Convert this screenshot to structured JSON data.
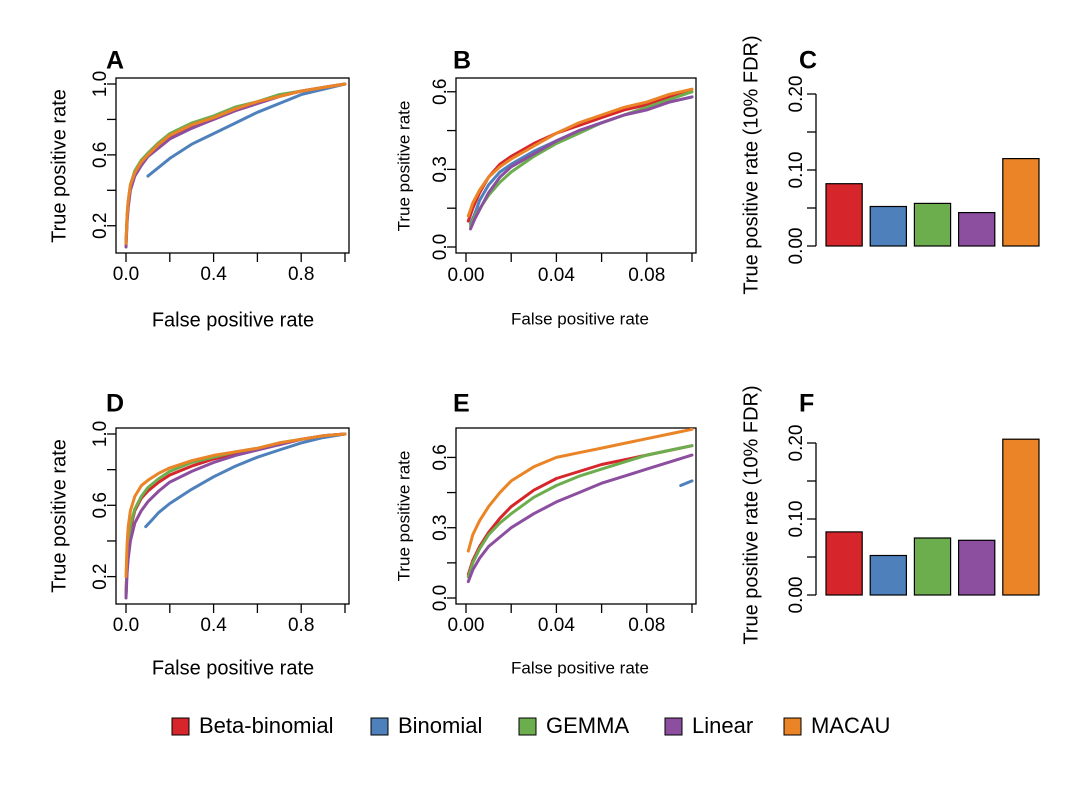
{
  "colors": {
    "Beta-binomial": "#D7262B",
    "Binomial": "#4E81BC",
    "GEMMA": "#6CAE4E",
    "Linear": "#8C4F9F",
    "MACAU": "#EA8426"
  },
  "legend": [
    "Beta-binomial",
    "Binomial",
    "GEMMA",
    "Linear",
    "MACAU"
  ],
  "chart_data": [
    {
      "panel": "A",
      "type": "line",
      "xlabel": "False positive rate",
      "ylabel": "True positive rate",
      "xlim": [
        0,
        1
      ],
      "ylim": [
        0.08,
        1.0
      ],
      "xticks": [
        0.0,
        0.4,
        0.8
      ],
      "xtick_labels": [
        "0.0",
        "0.4",
        "0.8"
      ],
      "xticks_minor": [
        0.2,
        0.6,
        1.0
      ],
      "yticks": [
        0.2,
        0.6,
        1.0
      ],
      "ytick_labels": [
        "0.2",
        "0.6",
        "1.0"
      ],
      "yticks_minor": [
        0.4,
        0.8
      ],
      "series": [
        {
          "name": "Beta-binomial",
          "x": [
            0,
            0.005,
            0.01,
            0.02,
            0.04,
            0.07,
            0.1,
            0.15,
            0.2,
            0.3,
            0.4,
            0.5,
            0.6,
            0.7,
            0.8,
            0.9,
            1.0
          ],
          "y": [
            0.1,
            0.25,
            0.33,
            0.42,
            0.5,
            0.56,
            0.6,
            0.66,
            0.7,
            0.76,
            0.8,
            0.85,
            0.89,
            0.93,
            0.96,
            0.98,
            1.0
          ]
        },
        {
          "name": "Binomial",
          "x": [
            0.1,
            0.15,
            0.2,
            0.3,
            0.4,
            0.5,
            0.6,
            0.7,
            0.8,
            0.9,
            1.0
          ],
          "y": [
            0.48,
            0.53,
            0.58,
            0.66,
            0.72,
            0.78,
            0.84,
            0.89,
            0.94,
            0.97,
            1.0
          ]
        },
        {
          "name": "GEMMA",
          "x": [
            0,
            0.005,
            0.01,
            0.02,
            0.04,
            0.07,
            0.1,
            0.15,
            0.2,
            0.3,
            0.4,
            0.5,
            0.6,
            0.7,
            0.8,
            0.9,
            1.0
          ],
          "y": [
            0.1,
            0.26,
            0.34,
            0.43,
            0.51,
            0.57,
            0.61,
            0.67,
            0.72,
            0.78,
            0.82,
            0.87,
            0.9,
            0.94,
            0.96,
            0.98,
            1.0
          ]
        },
        {
          "name": "Linear",
          "x": [
            0,
            0.005,
            0.01,
            0.02,
            0.04,
            0.07,
            0.1,
            0.15,
            0.2,
            0.3,
            0.4,
            0.5,
            0.6,
            0.7,
            0.8,
            0.9,
            1.0
          ],
          "y": [
            0.08,
            0.22,
            0.3,
            0.4,
            0.48,
            0.54,
            0.59,
            0.64,
            0.69,
            0.75,
            0.8,
            0.85,
            0.89,
            0.93,
            0.96,
            0.98,
            1.0
          ]
        },
        {
          "name": "MACAU",
          "x": [
            0,
            0.005,
            0.01,
            0.02,
            0.04,
            0.07,
            0.1,
            0.15,
            0.2,
            0.3,
            0.4,
            0.5,
            0.6,
            0.7,
            0.8,
            0.9,
            1.0
          ],
          "y": [
            0.1,
            0.26,
            0.34,
            0.43,
            0.5,
            0.56,
            0.6,
            0.66,
            0.71,
            0.77,
            0.81,
            0.86,
            0.9,
            0.93,
            0.96,
            0.98,
            1.0
          ]
        }
      ]
    },
    {
      "panel": "B",
      "type": "line",
      "xlabel": "False positive rate",
      "ylabel": "True positive rate",
      "xlim": [
        0,
        0.1
      ],
      "ylim": [
        0,
        0.63
      ],
      "xticks": [
        0.0,
        0.04,
        0.08
      ],
      "xtick_labels": [
        "0.00",
        "0.04",
        "0.08"
      ],
      "xticks_minor": [
        0.02,
        0.06,
        0.1
      ],
      "yticks": [
        0.0,
        0.3,
        0.6
      ],
      "ytick_labels": [
        "0.0",
        "0.3",
        "0.6"
      ],
      "yticks_minor": [
        0.15,
        0.45
      ],
      "series": [
        {
          "name": "Beta-binomial",
          "x": [
            0.001,
            0.003,
            0.006,
            0.01,
            0.015,
            0.02,
            0.03,
            0.04,
            0.05,
            0.06,
            0.07,
            0.08,
            0.09,
            0.1
          ],
          "y": [
            0.1,
            0.15,
            0.21,
            0.27,
            0.32,
            0.35,
            0.4,
            0.44,
            0.47,
            0.5,
            0.53,
            0.55,
            0.58,
            0.6
          ]
        },
        {
          "name": "Binomial",
          "x": [
            0.002,
            0.004,
            0.006,
            0.01,
            0.015,
            0.02,
            0.03,
            0.04,
            0.05,
            0.06,
            0.07,
            0.08,
            0.09,
            0.1
          ],
          "y": [
            0.09,
            0.13,
            0.18,
            0.24,
            0.29,
            0.32,
            0.37,
            0.41,
            0.45,
            0.48,
            0.51,
            0.54,
            0.56,
            0.58
          ]
        },
        {
          "name": "GEMMA",
          "x": [
            0.002,
            0.004,
            0.007,
            0.01,
            0.015,
            0.02,
            0.03,
            0.04,
            0.05,
            0.06,
            0.07,
            0.08,
            0.09,
            0.1
          ],
          "y": [
            0.08,
            0.12,
            0.16,
            0.2,
            0.25,
            0.29,
            0.35,
            0.4,
            0.44,
            0.48,
            0.51,
            0.54,
            0.57,
            0.6
          ]
        },
        {
          "name": "Linear",
          "x": [
            0.002,
            0.004,
            0.007,
            0.01,
            0.015,
            0.02,
            0.03,
            0.04,
            0.05,
            0.06,
            0.07,
            0.08,
            0.09,
            0.1
          ],
          "y": [
            0.07,
            0.11,
            0.16,
            0.21,
            0.27,
            0.31,
            0.36,
            0.41,
            0.45,
            0.48,
            0.51,
            0.53,
            0.56,
            0.58
          ]
        },
        {
          "name": "MACAU",
          "x": [
            0.001,
            0.003,
            0.006,
            0.01,
            0.015,
            0.02,
            0.03,
            0.04,
            0.05,
            0.06,
            0.07,
            0.08,
            0.09,
            0.1
          ],
          "y": [
            0.12,
            0.17,
            0.22,
            0.27,
            0.31,
            0.34,
            0.39,
            0.44,
            0.48,
            0.51,
            0.54,
            0.56,
            0.59,
            0.61
          ]
        }
      ]
    },
    {
      "panel": "C",
      "type": "bar",
      "ylabel": "True positive rate (10% FDR)",
      "ylim": [
        0,
        0.2
      ],
      "yticks": [
        0.0,
        0.1,
        0.2
      ],
      "ytick_labels": [
        "0.00",
        "0.10",
        "0.20"
      ],
      "yticks_minor": [
        0.05,
        0.15
      ],
      "categories": [
        "Beta-binomial",
        "Binomial",
        "GEMMA",
        "Linear",
        "MACAU"
      ],
      "values": [
        0.082,
        0.052,
        0.056,
        0.044,
        0.115
      ]
    },
    {
      "panel": "D",
      "type": "line",
      "xlabel": "False positive rate",
      "ylabel": "True positive rate",
      "xlim": [
        0,
        1
      ],
      "ylim": [
        0.08,
        1.0
      ],
      "xticks": [
        0.0,
        0.4,
        0.8
      ],
      "xtick_labels": [
        "0.0",
        "0.4",
        "0.8"
      ],
      "xticks_minor": [
        0.2,
        0.6,
        1.0
      ],
      "yticks": [
        0.2,
        0.6,
        1.0
      ],
      "ytick_labels": [
        "0.2",
        "0.6",
        "1.0"
      ],
      "yticks_minor": [
        0.4,
        0.8
      ],
      "series": [
        {
          "name": "Beta-binomial",
          "x": [
            0,
            0.005,
            0.01,
            0.02,
            0.04,
            0.07,
            0.1,
            0.15,
            0.2,
            0.3,
            0.4,
            0.5,
            0.6,
            0.7,
            0.8,
            0.9,
            1.0
          ],
          "y": [
            0.1,
            0.28,
            0.38,
            0.47,
            0.57,
            0.64,
            0.68,
            0.73,
            0.77,
            0.82,
            0.86,
            0.89,
            0.92,
            0.94,
            0.97,
            0.99,
            1.0
          ]
        },
        {
          "name": "Binomial",
          "x": [
            0.09,
            0.12,
            0.15,
            0.2,
            0.3,
            0.4,
            0.5,
            0.6,
            0.7,
            0.8,
            0.9,
            1.0
          ],
          "y": [
            0.48,
            0.52,
            0.56,
            0.61,
            0.69,
            0.76,
            0.82,
            0.87,
            0.91,
            0.95,
            0.98,
            1.0
          ]
        },
        {
          "name": "GEMMA",
          "x": [
            0,
            0.005,
            0.01,
            0.02,
            0.04,
            0.07,
            0.1,
            0.15,
            0.2,
            0.3,
            0.4,
            0.5,
            0.6,
            0.7,
            0.8,
            0.9,
            1.0
          ],
          "y": [
            0.1,
            0.28,
            0.39,
            0.49,
            0.58,
            0.65,
            0.7,
            0.75,
            0.79,
            0.84,
            0.87,
            0.9,
            0.92,
            0.95,
            0.97,
            0.99,
            1.0
          ]
        },
        {
          "name": "Linear",
          "x": [
            0,
            0.005,
            0.01,
            0.02,
            0.04,
            0.07,
            0.1,
            0.15,
            0.2,
            0.3,
            0.4,
            0.5,
            0.6,
            0.7,
            0.8,
            0.9,
            1.0
          ],
          "y": [
            0.08,
            0.22,
            0.3,
            0.4,
            0.5,
            0.57,
            0.62,
            0.68,
            0.73,
            0.79,
            0.84,
            0.88,
            0.91,
            0.94,
            0.97,
            0.99,
            1.0
          ]
        },
        {
          "name": "MACAU",
          "x": [
            0,
            0.005,
            0.01,
            0.02,
            0.04,
            0.07,
            0.1,
            0.15,
            0.2,
            0.3,
            0.4,
            0.5,
            0.6,
            0.7,
            0.8,
            0.9,
            1.0
          ],
          "y": [
            0.2,
            0.38,
            0.48,
            0.57,
            0.65,
            0.71,
            0.74,
            0.78,
            0.81,
            0.85,
            0.88,
            0.9,
            0.92,
            0.95,
            0.97,
            0.99,
            1.0
          ]
        }
      ]
    },
    {
      "panel": "E",
      "type": "line",
      "xlabel": "False positive rate",
      "ylabel": "True positive rate",
      "xlim": [
        0,
        0.1
      ],
      "ylim": [
        0,
        0.7
      ],
      "xticks": [
        0.0,
        0.04,
        0.08
      ],
      "xtick_labels": [
        "0.00",
        "0.04",
        "0.08"
      ],
      "xticks_minor": [
        0.02,
        0.06,
        0.1
      ],
      "yticks": [
        0.0,
        0.3,
        0.6
      ],
      "ytick_labels": [
        "0.0",
        "0.3",
        "0.6"
      ],
      "yticks_minor": [
        0.15,
        0.45
      ],
      "series": [
        {
          "name": "Beta-binomial",
          "x": [
            0.001,
            0.003,
            0.006,
            0.01,
            0.015,
            0.02,
            0.03,
            0.04,
            0.05,
            0.06,
            0.07,
            0.08,
            0.09,
            0.1
          ],
          "y": [
            0.1,
            0.16,
            0.22,
            0.28,
            0.34,
            0.39,
            0.46,
            0.51,
            0.54,
            0.57,
            0.59,
            0.61,
            0.63,
            0.65
          ]
        },
        {
          "name": "Binomial",
          "x": [
            0.095,
            0.1
          ],
          "y": [
            0.48,
            0.5
          ]
        },
        {
          "name": "GEMMA",
          "x": [
            0.001,
            0.003,
            0.006,
            0.01,
            0.015,
            0.02,
            0.03,
            0.04,
            0.05,
            0.06,
            0.07,
            0.08,
            0.09,
            0.1
          ],
          "y": [
            0.09,
            0.15,
            0.21,
            0.27,
            0.32,
            0.36,
            0.43,
            0.48,
            0.52,
            0.55,
            0.58,
            0.61,
            0.63,
            0.65
          ]
        },
        {
          "name": "Linear",
          "x": [
            0.001,
            0.003,
            0.006,
            0.01,
            0.015,
            0.02,
            0.03,
            0.04,
            0.05,
            0.06,
            0.07,
            0.08,
            0.09,
            0.1
          ],
          "y": [
            0.07,
            0.12,
            0.17,
            0.22,
            0.26,
            0.3,
            0.36,
            0.41,
            0.45,
            0.49,
            0.52,
            0.55,
            0.58,
            0.61
          ]
        },
        {
          "name": "MACAU",
          "x": [
            0.001,
            0.003,
            0.006,
            0.01,
            0.015,
            0.02,
            0.03,
            0.04,
            0.05,
            0.06,
            0.07,
            0.08,
            0.09,
            0.1
          ],
          "y": [
            0.2,
            0.27,
            0.33,
            0.39,
            0.45,
            0.5,
            0.56,
            0.6,
            0.62,
            0.64,
            0.66,
            0.68,
            0.7,
            0.72
          ]
        }
      ]
    },
    {
      "panel": "F",
      "type": "bar",
      "ylabel": "True positive rate (10% FDR)",
      "ylim": [
        0,
        0.2
      ],
      "yticks": [
        0.0,
        0.1,
        0.2
      ],
      "ytick_labels": [
        "0.00",
        "0.10",
        "0.20"
      ],
      "yticks_minor": [
        0.05,
        0.15
      ],
      "categories": [
        "Beta-binomial",
        "Binomial",
        "GEMMA",
        "Linear",
        "MACAU"
      ],
      "values": [
        0.083,
        0.052,
        0.075,
        0.072,
        0.205
      ]
    }
  ]
}
